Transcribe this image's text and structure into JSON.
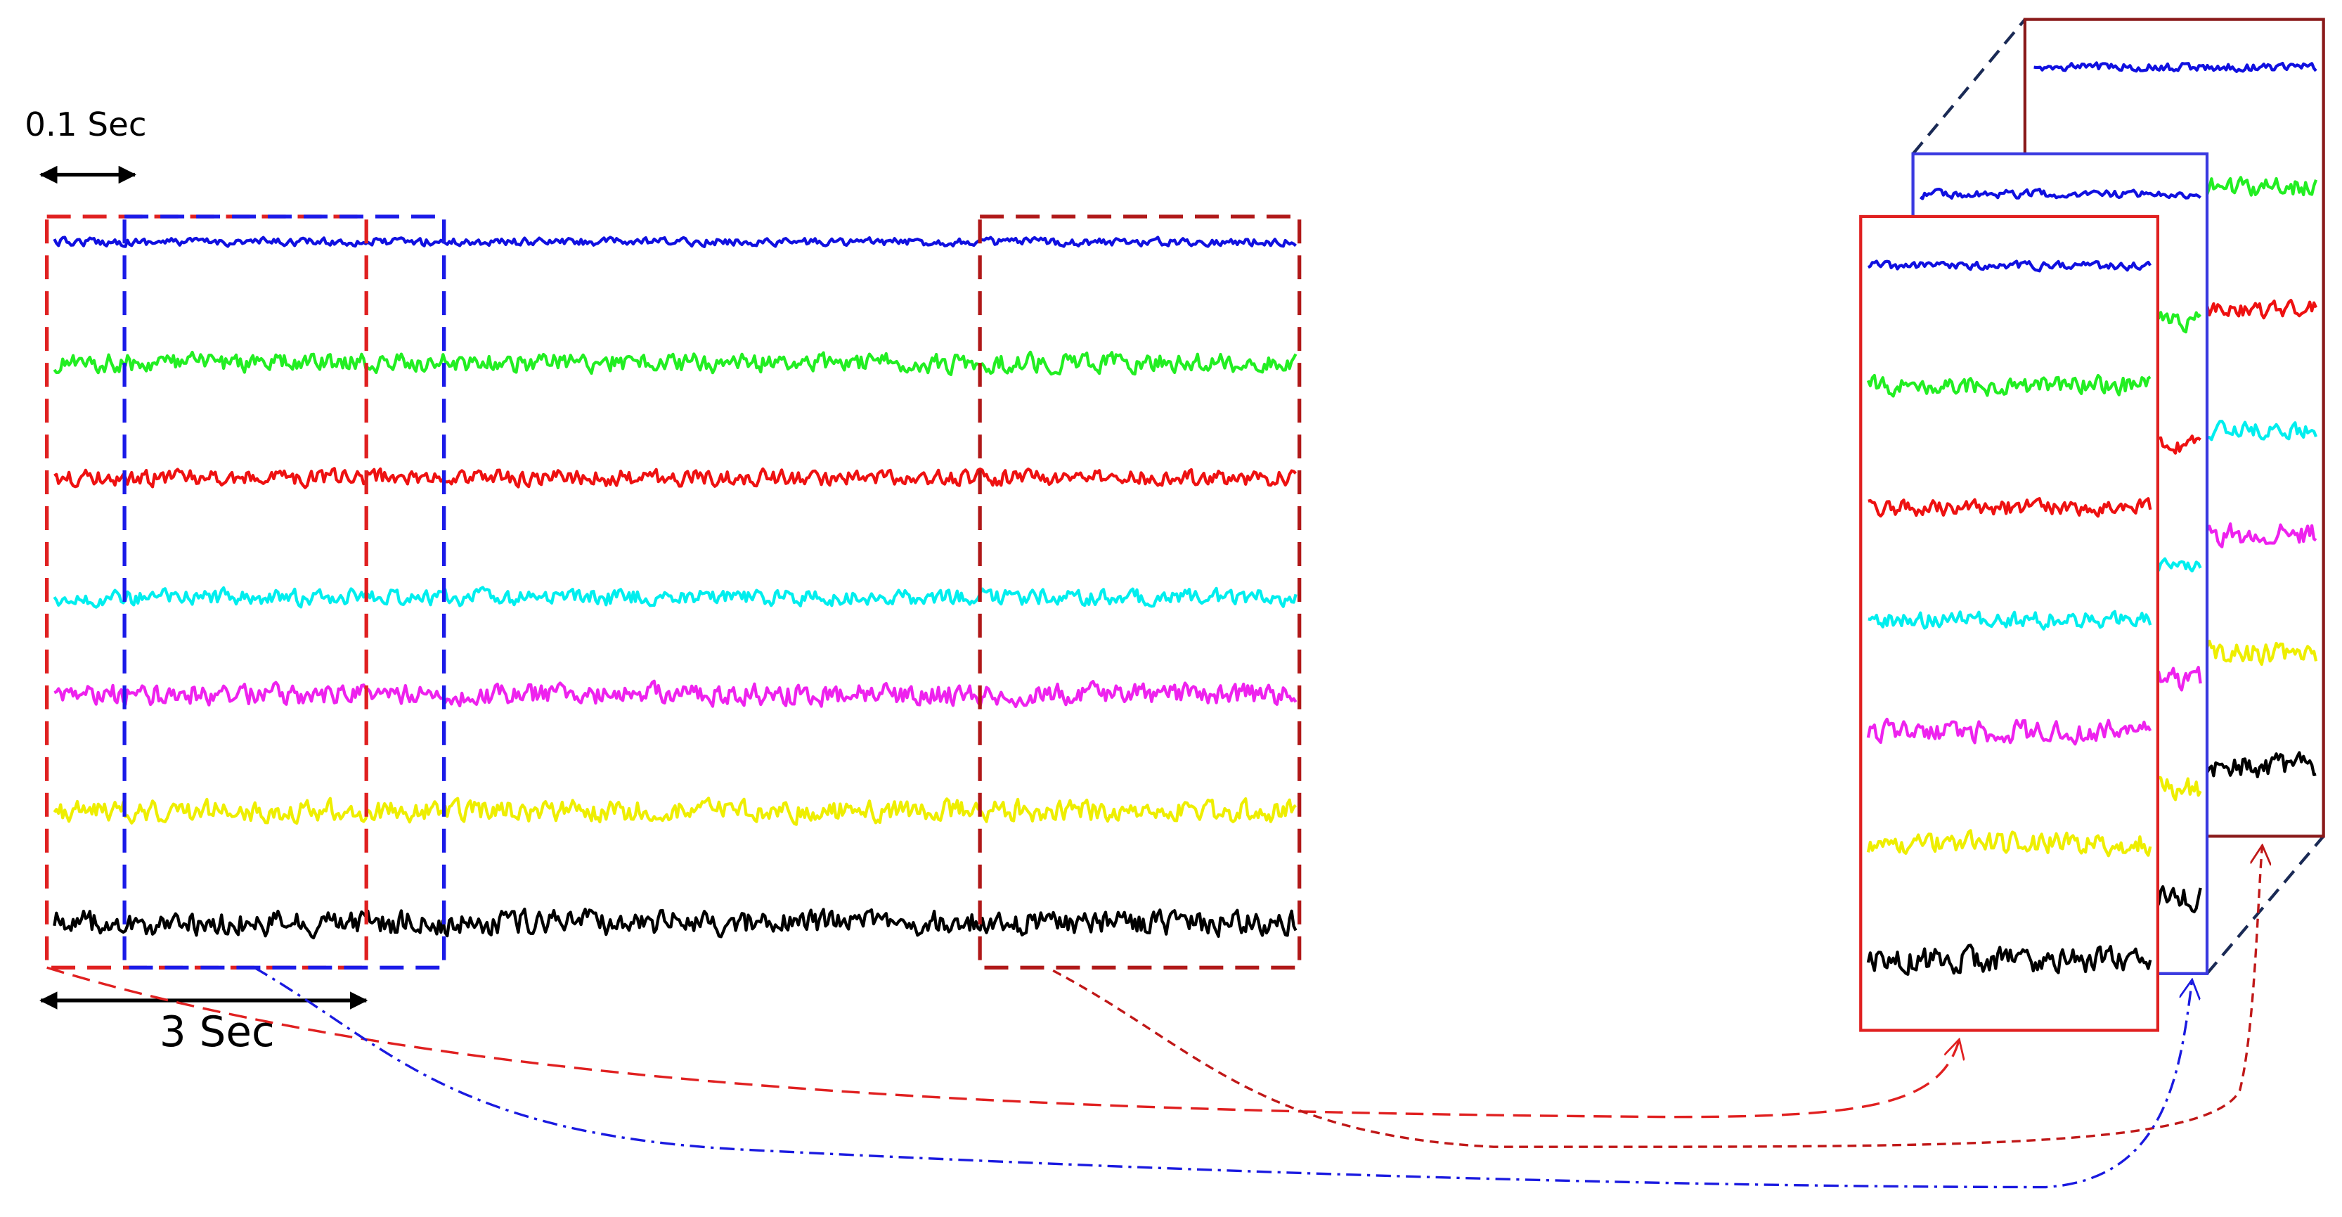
{
  "labels": {
    "window_step": "0.1 Sec",
    "window_length": "3 Sec"
  }
}
